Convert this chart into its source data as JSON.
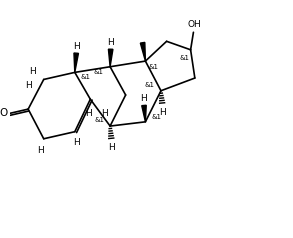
{
  "bg_color": "#ffffff",
  "line_color": "#000000",
  "line_width": 1.2,
  "font_size": 6.5,
  "figsize": [
    2.93,
    2.38
  ],
  "dpi": 100,
  "xlim": [
    0,
    10
  ],
  "ylim": [
    0,
    8
  ]
}
